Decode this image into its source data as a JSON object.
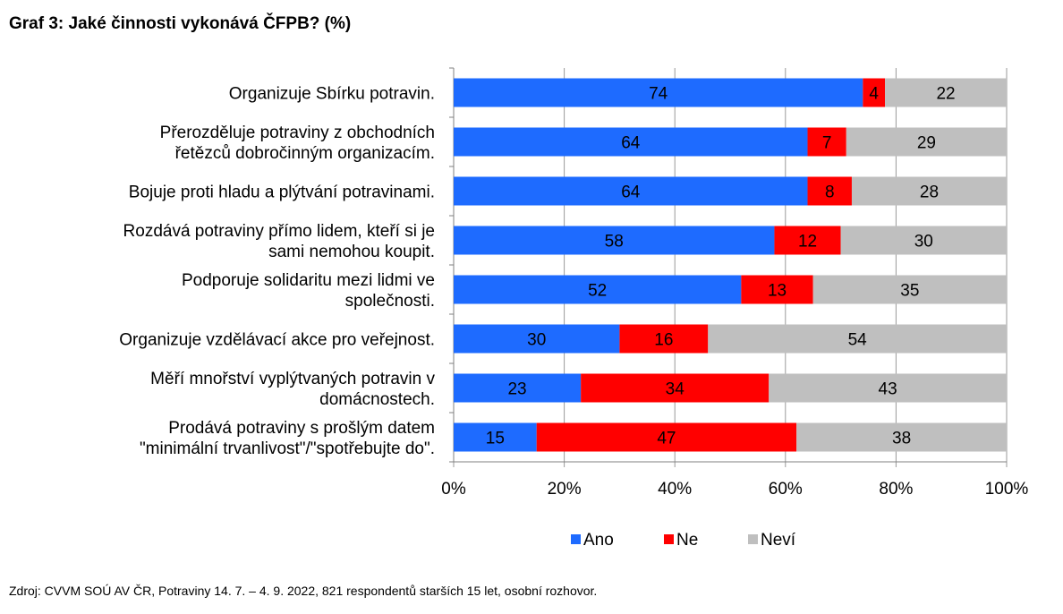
{
  "chart_data": {
    "type": "bar",
    "orientation": "horizontal",
    "stacked": true,
    "title": "Graf 3: Jaké činnosti vykonává ČFPB? (%)",
    "categories": [
      "Organizuje Sbírku potravin.",
      "Přerozděluje potraviny z obchodních řetězců dobročinným organizacím.",
      "Bojuje proti hladu a plýtvání potravinami.",
      "Rozdává potraviny přímo lidem, kteří si je sami nemohou koupit.",
      "Podporuje solidaritu mezi lidmi ve společnosti.",
      "Organizuje vzdělávací akce pro veřejnost.",
      "Měří mnořství vyplýtvaných potravin v domácnostech.",
      "Prodává potraviny s prošlým datem \"minimální trvanlivost\"/\"spotřebujte do\"."
    ],
    "category_lines": [
      [
        "Organizuje Sbírku potravin."
      ],
      [
        "Přerozděluje potraviny z obchodních",
        "řetězců dobročinným organizacím."
      ],
      [
        "Bojuje proti hladu a plýtvání potravinami."
      ],
      [
        "Rozdává potraviny přímo lidem, kteří si je",
        "sami nemohou koupit."
      ],
      [
        "Podporuje solidaritu mezi lidmi ve",
        "společnosti."
      ],
      [
        "Organizuje vzdělávací akce pro veřejnost."
      ],
      [
        "Měří mnořství vyplýtvaných potravin v",
        "domácnostech."
      ],
      [
        "Prodává potraviny s prošlým datem",
        "\"minimální trvanlivost\"/\"spotřebujte do\"."
      ]
    ],
    "series": [
      {
        "name": "Ano",
        "color": "#1E6BFF",
        "values": [
          74,
          64,
          64,
          58,
          52,
          30,
          23,
          15
        ]
      },
      {
        "name": "Ne",
        "color": "#FF0000",
        "values": [
          4,
          7,
          8,
          12,
          13,
          16,
          34,
          47
        ]
      },
      {
        "name": "Neví",
        "color": "#BFBFBF",
        "values": [
          22,
          29,
          28,
          30,
          35,
          54,
          43,
          38
        ]
      }
    ],
    "xlim": [
      0,
      100
    ],
    "x_ticks": [
      "0%",
      "20%",
      "40%",
      "60%",
      "80%",
      "100%"
    ],
    "grid": true,
    "legend_position": "bottom"
  },
  "source": "Zdroj: CVVM SOÚ AV ČR, Potraviny 14. 7. – 4. 9. 2022, 821 respondentů starších 15 let, osobní rozhovor."
}
